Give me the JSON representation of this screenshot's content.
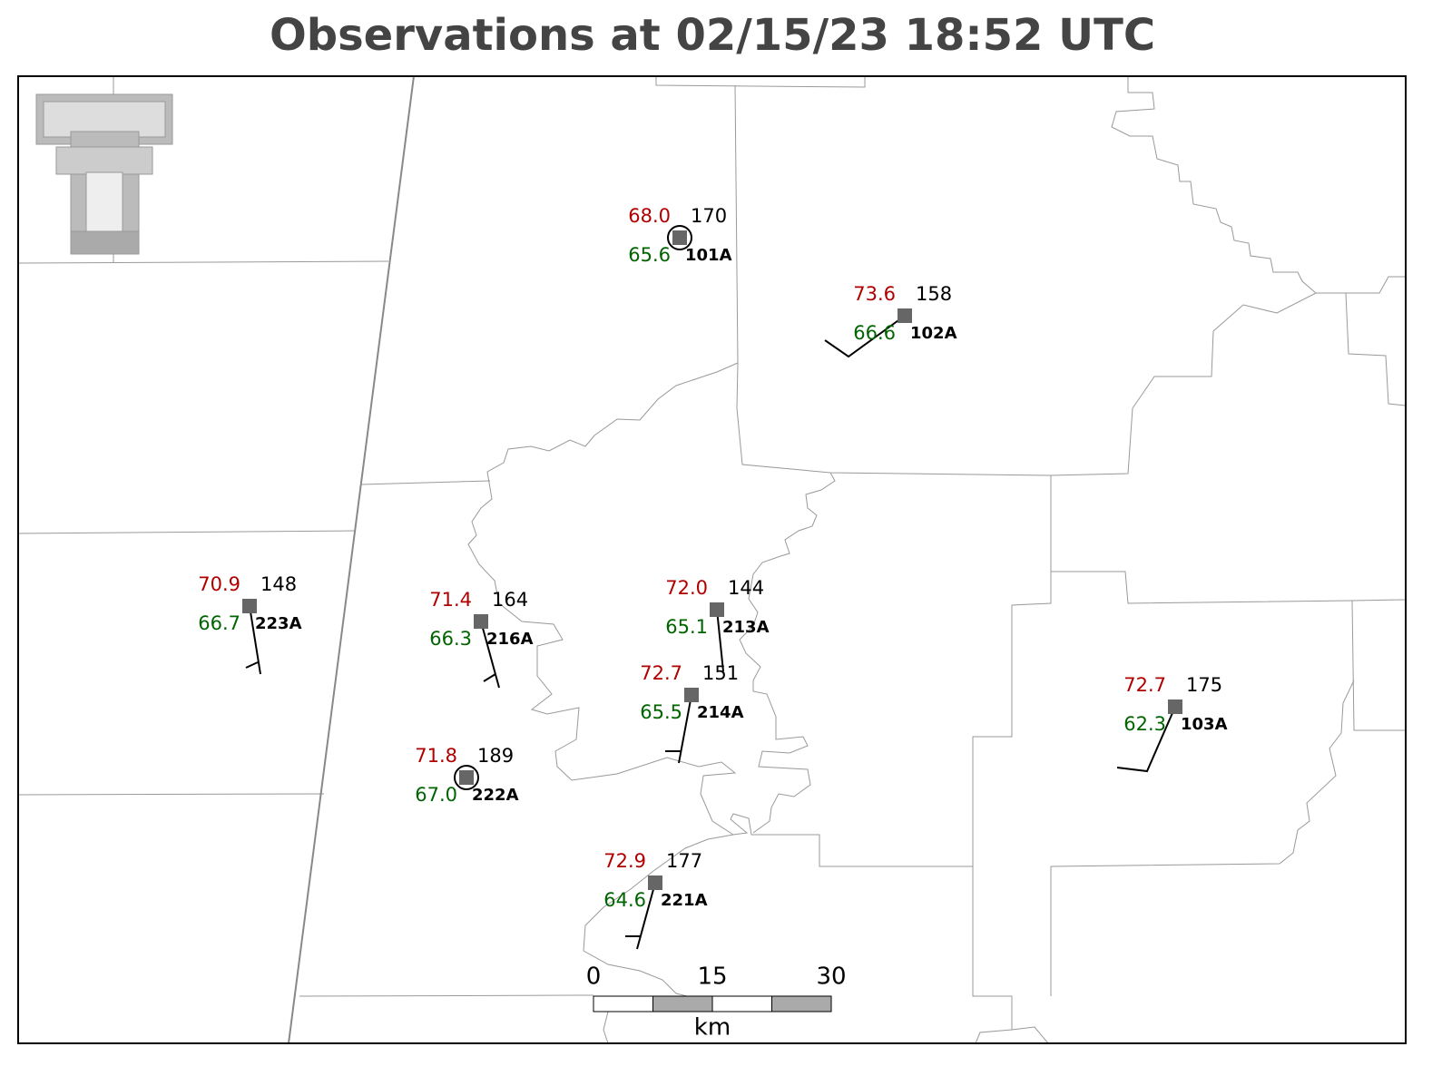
{
  "title": "Observations at 02/15/23 18:52 UTC",
  "stations": [
    {
      "id": "101A",
      "temperature": "68.0",
      "dewpoint": "65.6",
      "value": "170"
    },
    {
      "id": "102A",
      "temperature": "73.6",
      "dewpoint": "66.6",
      "value": "158"
    },
    {
      "id": "223A",
      "temperature": "70.9",
      "dewpoint": "66.7",
      "value": "148"
    },
    {
      "id": "216A",
      "temperature": "71.4",
      "dewpoint": "66.3",
      "value": "164"
    },
    {
      "id": "213A",
      "temperature": "72.0",
      "dewpoint": "65.1",
      "value": "144"
    },
    {
      "id": "214A",
      "temperature": "72.7",
      "dewpoint": "65.5",
      "value": "151"
    },
    {
      "id": "222A",
      "temperature": "71.8",
      "dewpoint": "67.0",
      "value": "189"
    },
    {
      "id": "221A",
      "temperature": "72.9",
      "dewpoint": "64.6",
      "value": "177"
    },
    {
      "id": "103A",
      "temperature": "72.7",
      "dewpoint": "62.3",
      "value": "175"
    }
  ],
  "scale": {
    "ticks": [
      0,
      15,
      30
    ],
    "unit": "km"
  }
}
